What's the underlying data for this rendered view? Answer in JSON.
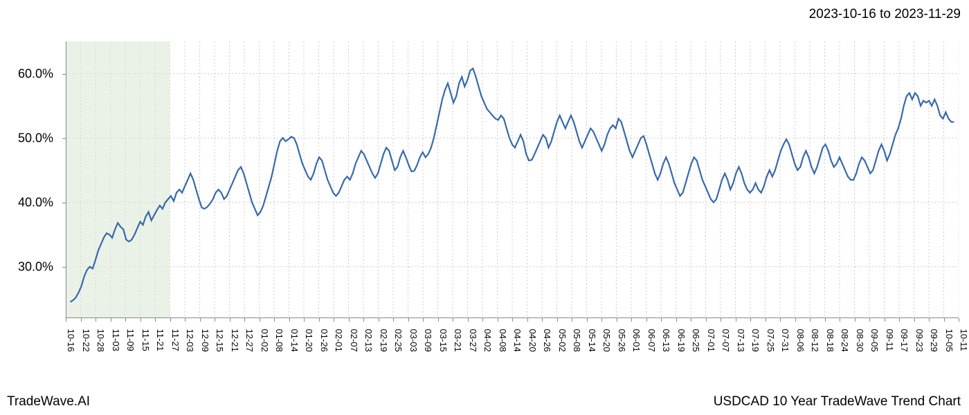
{
  "header": {
    "date_range": "2023-10-16 to 2023-11-29"
  },
  "footer": {
    "brand": "TradeWave.AI",
    "chart_title": "USDCAD 10 Year TradeWave Trend Chart"
  },
  "chart": {
    "type": "line",
    "background_color": "#ffffff",
    "line_color": "#3868a8",
    "line_width": 2.2,
    "grid_color": "#cccccc",
    "grid_dash": "2,3",
    "highlight_band": {
      "x_start_index": 0,
      "x_end_index": 7,
      "fill": "#d9e8d4",
      "opacity": 0.55
    },
    "ylim": [
      22,
      65
    ],
    "y_ticks": [
      30,
      40,
      50,
      60
    ],
    "y_tick_labels": [
      "30.0%",
      "40.0%",
      "50.0%",
      "60.0%"
    ],
    "tick_label_fontsize": 18,
    "x_tick_label_fontsize": 13,
    "x_labels": [
      "10-16",
      "10-22",
      "10-28",
      "11-03",
      "11-09",
      "11-15",
      "11-21",
      "11-27",
      "12-03",
      "12-09",
      "12-15",
      "12-21",
      "12-27",
      "01-02",
      "01-08",
      "01-14",
      "01-20",
      "01-26",
      "02-01",
      "02-07",
      "02-13",
      "02-19",
      "02-25",
      "03-03",
      "03-09",
      "03-15",
      "03-21",
      "03-27",
      "04-02",
      "04-08",
      "04-14",
      "04-20",
      "04-26",
      "05-02",
      "05-08",
      "05-14",
      "05-20",
      "05-26",
      "06-01",
      "06-07",
      "06-13",
      "06-19",
      "06-25",
      "07-01",
      "07-07",
      "07-13",
      "07-19",
      "07-25",
      "07-31",
      "08-06",
      "08-12",
      "08-18",
      "08-24",
      "08-30",
      "09-05",
      "09-11",
      "09-17",
      "09-23",
      "09-29",
      "10-05",
      "10-11"
    ],
    "values": [
      24.5,
      24.8,
      25.2,
      26.0,
      27.0,
      28.5,
      29.5,
      30.0,
      29.7,
      31.0,
      32.5,
      33.5,
      34.5,
      35.2,
      35.0,
      34.5,
      35.8,
      36.8,
      36.2,
      35.8,
      34.2,
      33.9,
      34.2,
      35.0,
      36.0,
      37.0,
      36.5,
      37.8,
      38.5,
      37.2,
      38.0,
      38.8,
      39.5,
      39.0,
      40.0,
      40.5,
      41.0,
      40.2,
      41.5,
      42.0,
      41.5,
      42.5,
      43.5,
      44.5,
      43.5,
      42.0,
      40.5,
      39.2,
      39.0,
      39.3,
      39.8,
      40.5,
      41.5,
      42.0,
      41.5,
      40.5,
      41.0,
      42.0,
      43.0,
      44.0,
      45.0,
      45.5,
      44.5,
      43.0,
      41.5,
      40.0,
      39.0,
      38.0,
      38.5,
      39.5,
      41.0,
      42.5,
      44.0,
      46.0,
      48.0,
      49.5,
      50.0,
      49.5,
      49.8,
      50.2,
      50.0,
      49.0,
      47.5,
      46.0,
      45.0,
      44.0,
      43.5,
      44.5,
      46.0,
      47.0,
      46.5,
      45.0,
      43.5,
      42.5,
      41.5,
      41.0,
      41.5,
      42.5,
      43.5,
      44.0,
      43.5,
      44.5,
      46.0,
      47.0,
      48.0,
      47.5,
      46.5,
      45.5,
      44.5,
      43.8,
      44.5,
      46.0,
      47.5,
      48.5,
      48.0,
      46.5,
      45.0,
      45.5,
      47.0,
      48.0,
      47.0,
      45.8,
      44.8,
      44.9,
      45.8,
      47.0,
      47.8,
      47.0,
      47.5,
      48.5,
      50.0,
      52.0,
      54.0,
      56.0,
      57.5,
      58.5,
      57.0,
      55.5,
      56.5,
      58.5,
      59.5,
      58.0,
      59.0,
      60.5,
      60.8,
      59.5,
      58.0,
      56.5,
      55.5,
      54.5,
      54.0,
      53.5,
      53.0,
      52.8,
      53.5,
      53.0,
      51.5,
      50.0,
      49.0,
      48.5,
      49.5,
      50.5,
      49.5,
      47.5,
      46.5,
      46.6,
      47.5,
      48.5,
      49.5,
      50.5,
      50.0,
      48.5,
      49.5,
      51.0,
      52.5,
      53.5,
      52.5,
      51.5,
      52.5,
      53.5,
      52.5,
      51.0,
      49.5,
      48.5,
      49.5,
      50.5,
      51.5,
      51.0,
      50.0,
      49.0,
      48.0,
      49.0,
      50.5,
      51.5,
      52.0,
      51.5,
      53.0,
      52.5,
      51.0,
      49.5,
      48.0,
      47.0,
      48.0,
      49.0,
      50.0,
      50.3,
      49.0,
      47.5,
      46.0,
      44.5,
      43.5,
      44.5,
      46.0,
      47.0,
      46.0,
      44.5,
      43.0,
      42.0,
      41.0,
      41.5,
      43.0,
      44.5,
      46.0,
      47.0,
      46.5,
      45.0,
      43.5,
      42.5,
      41.5,
      40.5,
      40.0,
      40.5,
      42.0,
      43.5,
      44.5,
      43.5,
      42.0,
      43.0,
      44.5,
      45.5,
      44.5,
      43.0,
      42.0,
      41.5,
      42.0,
      43.0,
      42.0,
      41.5,
      42.5,
      44.0,
      45.0,
      44.0,
      45.0,
      46.5,
      48.0,
      49.0,
      49.8,
      49.0,
      47.5,
      46.0,
      45.0,
      45.5,
      47.0,
      48.0,
      47.0,
      45.5,
      44.5,
      45.5,
      47.0,
      48.5,
      49.0,
      48.0,
      46.5,
      45.5,
      46.0,
      47.0,
      46.0,
      45.0,
      44.0,
      43.5,
      43.5,
      44.5,
      46.0,
      47.0,
      46.5,
      45.5,
      44.5,
      45.0,
      46.5,
      48.0,
      49.0,
      48.0,
      46.5,
      47.5,
      49.0,
      50.5,
      51.5,
      53.0,
      55.0,
      56.5,
      57.0,
      56.0,
      57.0,
      56.5,
      55.0,
      55.8,
      55.5,
      55.8,
      55.0,
      56.0,
      55.0,
      53.5,
      53.0,
      54.0,
      53.0,
      52.5,
      52.5
    ]
  }
}
